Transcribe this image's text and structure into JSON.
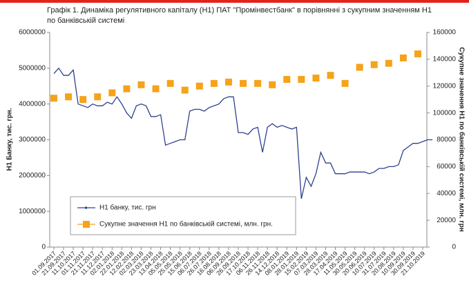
{
  "chart_data": {
    "type": "line",
    "title": "Графік 1. Динаміка регулятивного капіталу (Н1) ПАТ \"Промінвестбанк\" в порівнянні з сукупним значенням Н1 по банківській системі",
    "y_label": "Н1 Банку, тис. грн.",
    "y2_label": "Сукупне значення Н1 по банківській системі, млн. грн",
    "categories": [
      "01.09.2017",
      null,
      "21.09.2017",
      null,
      "11.10.2017",
      null,
      "01.11.2017",
      null,
      "21.11.2017",
      null,
      "11.12.2017",
      null,
      "02.01.2018",
      null,
      "22.01.2018",
      null,
      "12.02.2018",
      null,
      "02.03.2018",
      null,
      "23.03.2018",
      null,
      "13.04.2018",
      null,
      "05.05.2018",
      null,
      "25.05.2018",
      null,
      "15.06.2018",
      null,
      "06.07.2018",
      null,
      "26.07.2018",
      null,
      "16.08.2018",
      null,
      "06.09.2018",
      null,
      "26.09.2018",
      null,
      "17.10.2018",
      null,
      "06.11.2018",
      null,
      "26.11.2018",
      null,
      "14.12.2018",
      null,
      "08.01.2019",
      null,
      "28.01.2019",
      null,
      "15.02.2019",
      null,
      "07.03.2019",
      null,
      "28.03.2019",
      null,
      "17.04.2019",
      null,
      "11.05.2019",
      null,
      "30.05.2019",
      null,
      "20.06.2019",
      null,
      "10.07.2019",
      null,
      "31.07.2019",
      null,
      "20.08.2019",
      null,
      "10.09.2019",
      null,
      "30.09.2019",
      null,
      "21.10.2019",
      null,
      null
    ],
    "series": [
      {
        "name": "Н1 банку, тис. грн",
        "color": "#2e3f8f",
        "axis": "y",
        "values": [
          4850000,
          5000000,
          4800000,
          4800000,
          4950000,
          4000000,
          3950000,
          3900000,
          4000000,
          3950000,
          3950000,
          4050000,
          4000000,
          4200000,
          4000000,
          3750000,
          3600000,
          3950000,
          4000000,
          3950000,
          3650000,
          3650000,
          3700000,
          2850000,
          2900000,
          2950000,
          3000000,
          3000000,
          3800000,
          3850000,
          3850000,
          3800000,
          3900000,
          3950000,
          4000000,
          4150000,
          4200000,
          4200000,
          3200000,
          3200000,
          3150000,
          3300000,
          3350000,
          2650000,
          3350000,
          3450000,
          3350000,
          3400000,
          3350000,
          3300000,
          3350000,
          1350000,
          1950000,
          1700000,
          2050000,
          2650000,
          2350000,
          2350000,
          2050000,
          2050000,
          2050000,
          2100000,
          2100000,
          2100000,
          2100000,
          2050000,
          2100000,
          2200000,
          2200000,
          2250000,
          2250000,
          2300000,
          2700000,
          2800000,
          2900000,
          2900000,
          2950000,
          3000000,
          3000000
        ]
      },
      {
        "name": "Сукупне значення Н1 по банківській системі, млн. грн.",
        "color": "#f5a31a",
        "axis": "y2",
        "marker": "square",
        "values": [
          111000,
          null,
          null,
          112000,
          null,
          null,
          110000,
          null,
          null,
          112000,
          null,
          null,
          115000,
          null,
          null,
          118000,
          null,
          null,
          121000,
          null,
          null,
          118000,
          null,
          null,
          122000,
          null,
          null,
          117000,
          null,
          null,
          120000,
          null,
          null,
          122000,
          null,
          null,
          123000,
          null,
          null,
          122000,
          null,
          null,
          122000,
          null,
          null,
          121000,
          null,
          null,
          125000,
          null,
          null,
          125000,
          null,
          null,
          126000,
          null,
          null,
          128000,
          null,
          null,
          122000,
          null,
          null,
          134000,
          null,
          null,
          136000,
          null,
          null,
          137000,
          null,
          null,
          141000,
          null,
          null,
          144000,
          null,
          null,
          null
        ]
      }
    ],
    "ylim": [
      0,
      6000000
    ],
    "yticks": [
      0,
      1000000,
      2000000,
      3000000,
      4000000,
      5000000,
      6000000
    ],
    "y2lim": [
      0,
      160000
    ],
    "y2ticks": [
      0,
      20000,
      40000,
      60000,
      80000,
      100000,
      120000,
      140000,
      160000
    ],
    "legend": "bottom-left"
  }
}
